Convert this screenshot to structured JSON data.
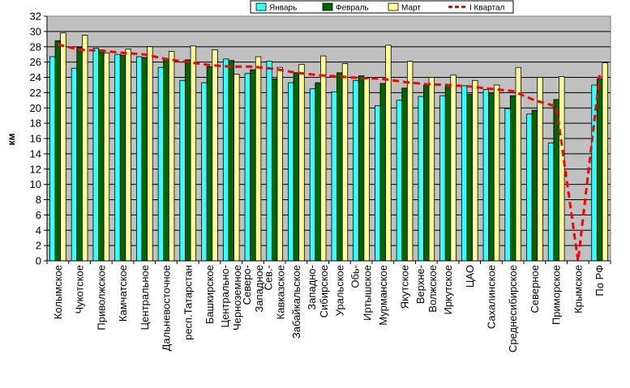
{
  "chart_data": {
    "type": "bar",
    "ylabel": "км",
    "ylim": [
      0,
      32
    ],
    "yticks": [
      0,
      2,
      4,
      6,
      8,
      10,
      12,
      14,
      16,
      18,
      20,
      22,
      24,
      26,
      28,
      30,
      32
    ],
    "grid": true,
    "legend_position": "top-right",
    "categories": [
      "Колымское",
      "Чукотское",
      "Приволжское",
      "Камчатское",
      "Центральное",
      "Дальневосточное",
      "респ.Татарстан",
      "Башкирское",
      "Центрально-Черноземное",
      "Северо-Западное",
      "Сев.-Кавказское",
      "Забайкальское",
      "Западно-Сибирское",
      "Уральское",
      "Обь-Иртышское",
      "Мурманское",
      "Якутское",
      "Верхне-Волжское",
      "Иркутское",
      "ЦАО",
      "Сахалинское",
      "Среднесибирское",
      "Северное",
      "Приморское",
      "Крымское",
      "По РФ"
    ],
    "category_label_lines": [
      [
        "Колымское"
      ],
      [
        "Чукотское"
      ],
      [
        "Приволжское"
      ],
      [
        "Камчатское"
      ],
      [
        "Центральное"
      ],
      [
        "Дальневосточное"
      ],
      [
        "респ.Татарстан"
      ],
      [
        "Башкирское"
      ],
      [
        "Центрально-",
        "Черноземное"
      ],
      [
        "Северо-",
        "Западное"
      ],
      [
        "Сев.-",
        "Кавказское"
      ],
      [
        "Забайкальское"
      ],
      [
        "Западно-",
        "Сибирское"
      ],
      [
        "Уральское"
      ],
      [
        "Обь-",
        "Иртышское"
      ],
      [
        "Мурманское"
      ],
      [
        "Якутское"
      ],
      [
        "Верхне-",
        "Волжское"
      ],
      [
        "Иркутское"
      ],
      [
        "ЦАО"
      ],
      [
        "Сахалинское"
      ],
      [
        "Среднесибирское"
      ],
      [
        "Северное"
      ],
      [
        "Приморское"
      ],
      [
        "Крымское"
      ],
      [
        "По РФ"
      ]
    ],
    "series": [
      {
        "name": "Январь",
        "type": "bar",
        "color": "#33ffff",
        "values": [
          26.7,
          25.2,
          27.8,
          27.0,
          26.7,
          25.3,
          23.6,
          23.3,
          26.4,
          24.5,
          26.1,
          23.3,
          22.5,
          22.1,
          23.6,
          20.3,
          21.0,
          21.5,
          21.6,
          22.9,
          22.4,
          19.9,
          19.2,
          15.4,
          0,
          23.0
        ]
      },
      {
        "name": "Февраль",
        "type": "bar",
        "color": "#006600",
        "values": [
          28.8,
          27.9,
          27.6,
          26.9,
          26.6,
          26.4,
          26.3,
          25.4,
          26.2,
          25.0,
          23.8,
          24.6,
          23.3,
          24.6,
          24.2,
          23.2,
          22.6,
          23.0,
          23.0,
          21.8,
          22.0,
          21.6,
          19.7,
          21.1,
          0,
          23.8
        ]
      },
      {
        "name": "Март",
        "type": "bar",
        "color": "#ffff99",
        "values": [
          29.8,
          29.5,
          27.2,
          27.7,
          28.0,
          27.4,
          28.1,
          27.6,
          24.4,
          26.7,
          25.3,
          25.7,
          26.8,
          25.8,
          23.9,
          28.2,
          26.1,
          24.0,
          24.3,
          23.6,
          23.0,
          25.3,
          24.0,
          24.1,
          0,
          25.9
        ]
      },
      {
        "name": "I Квартал",
        "type": "line",
        "color": "#ff0000",
        "values": [
          28.3,
          27.6,
          27.5,
          27.2,
          27.0,
          26.4,
          26.0,
          25.6,
          25.4,
          25.4,
          25.1,
          24.6,
          24.3,
          24.1,
          23.9,
          23.8,
          23.4,
          23.1,
          23.0,
          22.8,
          22.5,
          22.2,
          21.0,
          20.2,
          0.0,
          24.3
        ]
      }
    ]
  }
}
